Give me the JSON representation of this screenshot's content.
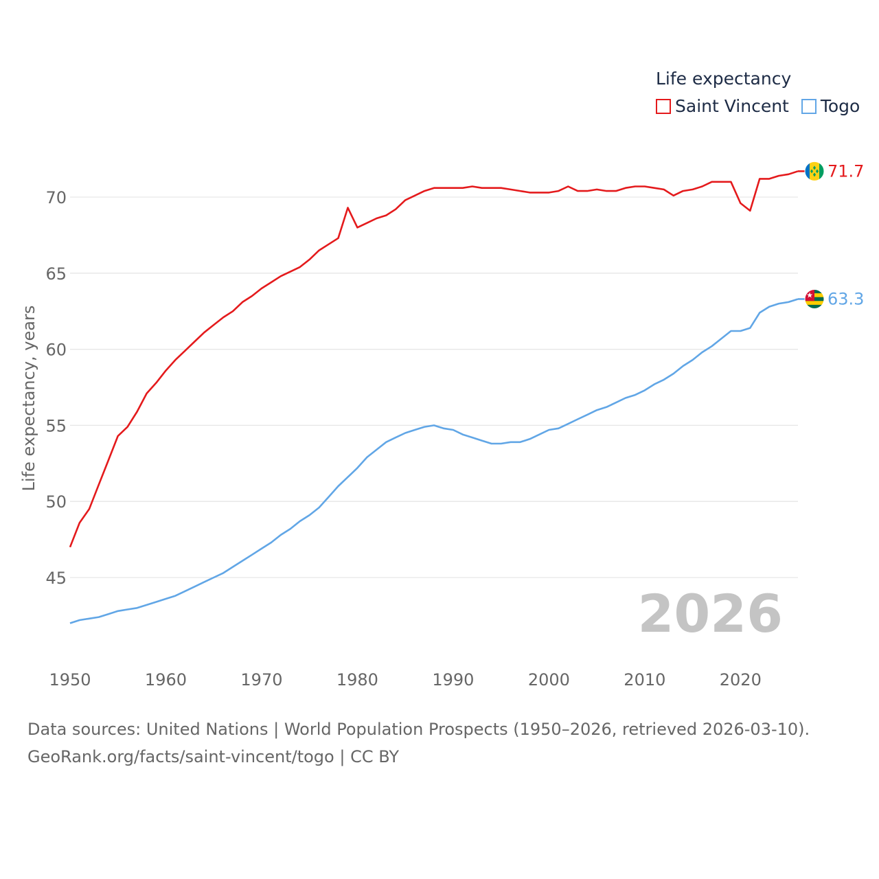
{
  "legend": {
    "title": "Life expectancy"
  },
  "chart_data": {
    "type": "line",
    "title": "Life expectancy",
    "xlabel": "",
    "ylabel": "Life expectancy, years",
    "xlim": [
      1950,
      2026
    ],
    "ylim": [
      41.3,
      73
    ],
    "x_ticks": [
      1950,
      1960,
      1970,
      1980,
      1990,
      2000,
      2010,
      2020
    ],
    "y_ticks": [
      45,
      50,
      55,
      60,
      65,
      70
    ],
    "watermark_year": "2026",
    "x": [
      1950,
      1951,
      1952,
      1953,
      1954,
      1955,
      1956,
      1957,
      1958,
      1959,
      1960,
      1961,
      1962,
      1963,
      1964,
      1965,
      1966,
      1967,
      1968,
      1969,
      1970,
      1971,
      1972,
      1973,
      1974,
      1975,
      1976,
      1977,
      1978,
      1979,
      1980,
      1981,
      1982,
      1983,
      1984,
      1985,
      1986,
      1987,
      1988,
      1989,
      1990,
      1991,
      1992,
      1993,
      1994,
      1995,
      1996,
      1997,
      1998,
      1999,
      2000,
      2001,
      2002,
      2003,
      2004,
      2005,
      2006,
      2007,
      2008,
      2009,
      2010,
      2011,
      2012,
      2013,
      2014,
      2015,
      2016,
      2017,
      2018,
      2019,
      2020,
      2021,
      2022,
      2023,
      2024,
      2025,
      2026
    ],
    "series": [
      {
        "name": "Saint Vincent",
        "color": "#e41a1c",
        "end_label": "71.7",
        "flag": "saint-vincent-flag-icon",
        "values": [
          47.0,
          48.6,
          49.5,
          51.1,
          52.7,
          54.3,
          54.9,
          55.9,
          57.1,
          57.8,
          58.6,
          59.3,
          59.9,
          60.5,
          61.1,
          61.6,
          62.1,
          62.5,
          63.1,
          63.5,
          64.0,
          64.4,
          64.8,
          65.1,
          65.4,
          65.9,
          66.5,
          66.9,
          67.3,
          69.3,
          68.0,
          68.3,
          68.6,
          68.8,
          69.2,
          69.8,
          70.1,
          70.4,
          70.6,
          70.6,
          70.6,
          70.6,
          70.7,
          70.6,
          70.6,
          70.6,
          70.5,
          70.4,
          70.3,
          70.3,
          70.3,
          70.4,
          70.7,
          70.4,
          70.4,
          70.5,
          70.4,
          70.4,
          70.6,
          70.7,
          70.7,
          70.6,
          70.5,
          70.1,
          70.4,
          70.5,
          70.7,
          71.0,
          71.0,
          71.0,
          69.6,
          69.1,
          71.2,
          71.2,
          71.4,
          71.5,
          71.7
        ]
      },
      {
        "name": "Togo",
        "color": "#61a6e6",
        "end_label": "63.3",
        "flag": "togo-flag-icon",
        "values": [
          42.0,
          42.2,
          42.3,
          42.4,
          42.6,
          42.8,
          42.9,
          43.0,
          43.2,
          43.4,
          43.6,
          43.8,
          44.1,
          44.4,
          44.7,
          45.0,
          45.3,
          45.7,
          46.1,
          46.5,
          46.9,
          47.3,
          47.8,
          48.2,
          48.7,
          49.1,
          49.6,
          50.3,
          51.0,
          51.6,
          52.2,
          52.9,
          53.4,
          53.9,
          54.2,
          54.5,
          54.7,
          54.9,
          55.0,
          54.8,
          54.7,
          54.4,
          54.2,
          54.0,
          53.8,
          53.8,
          53.9,
          53.9,
          54.1,
          54.4,
          54.7,
          54.8,
          55.1,
          55.4,
          55.7,
          56.0,
          56.2,
          56.5,
          56.8,
          57.0,
          57.3,
          57.7,
          58.0,
          58.4,
          58.9,
          59.3,
          59.8,
          60.2,
          60.7,
          61.2,
          61.2,
          61.4,
          62.4,
          62.8,
          63.0,
          63.1,
          63.3
        ]
      }
    ]
  },
  "source": {
    "line1": "Data sources: United Nations | World Population Prospects (1950–2026, retrieved 2026-03-10).",
    "line2": "GeoRank.org/facts/saint-vincent/togo | CC BY"
  }
}
